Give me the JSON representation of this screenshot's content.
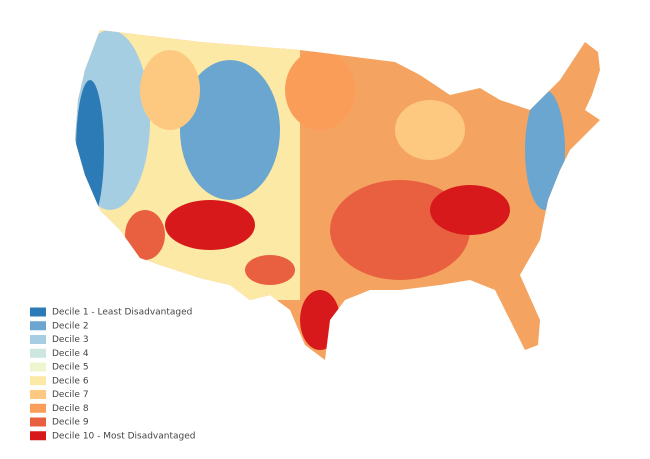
{
  "legend": {
    "items": [
      {
        "label": "Decile 1 - Least Disadvantaged",
        "color": "#2c7bb6"
      },
      {
        "label": "Decile 2",
        "color": "#6aa6cf"
      },
      {
        "label": "Decile 3",
        "color": "#a6cee3"
      },
      {
        "label": "Decile 4",
        "color": "#cde6e0"
      },
      {
        "label": "Decile 5",
        "color": "#eef6d0"
      },
      {
        "label": "Decile 6",
        "color": "#fde9a6"
      },
      {
        "label": "Decile 7",
        "color": "#fdc980"
      },
      {
        "label": "Decile 8",
        "color": "#f99d59"
      },
      {
        "label": "Decile 9",
        "color": "#e8603f"
      },
      {
        "label": "Decile 10 - Most Disadvantaged",
        "color": "#d7191c"
      }
    ]
  }
}
